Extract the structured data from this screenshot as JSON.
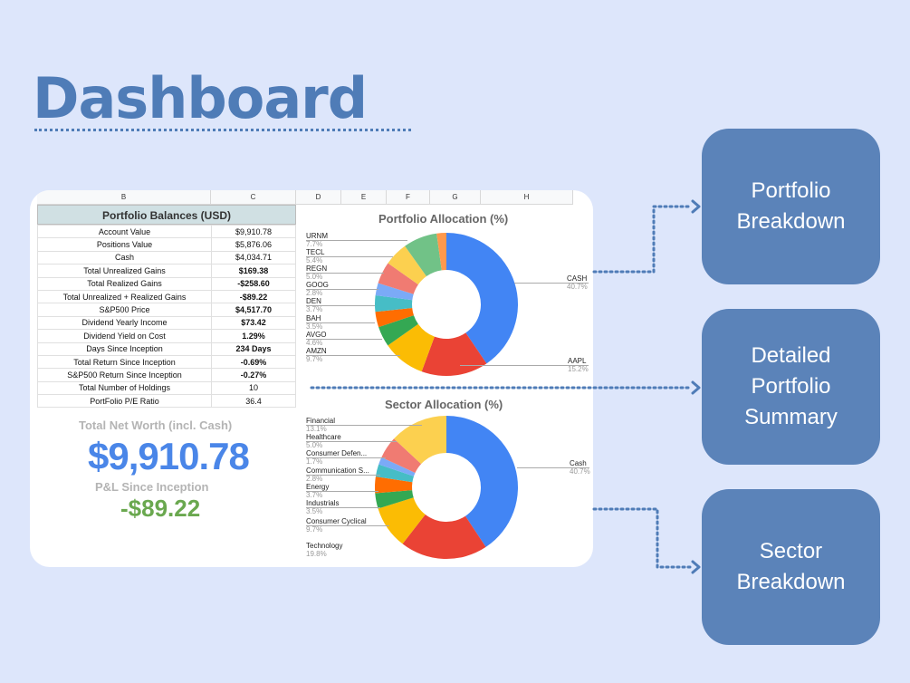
{
  "title": "Dashboard",
  "sheet": {
    "columns": [
      "B",
      "C",
      "D",
      "E",
      "F",
      "G",
      "H"
    ],
    "balances": {
      "title": "Portfolio Balances (USD)",
      "rows": [
        {
          "label": "Account Value",
          "value": "$9,910.78",
          "tone": ""
        },
        {
          "label": "Positions Value",
          "value": "$5,876.06",
          "tone": ""
        },
        {
          "label": "Cash",
          "value": "$4,034.71",
          "tone": ""
        },
        {
          "label": "Total Unrealized Gains",
          "value": "$169.38",
          "tone": "pos"
        },
        {
          "label": "Total Realized Gains",
          "value": "-$258.60",
          "tone": "neg"
        },
        {
          "label": "Total Unrealized + Realized Gains",
          "value": "-$89.22",
          "tone": "neg"
        },
        {
          "label": "S&P500 Price",
          "value": "$4,517.70",
          "tone": "pos"
        },
        {
          "label": "Dividend Yearly Income",
          "value": "$73.42",
          "tone": "pos"
        },
        {
          "label": "Dividend Yield on Cost",
          "value": "1.29%",
          "tone": "pos"
        },
        {
          "label": "Days Since Inception",
          "value": "234 Days",
          "tone": "pos"
        },
        {
          "label": "Total Return Since Inception",
          "value": "-0.69%",
          "tone": "neg"
        },
        {
          "label": "S&P500 Return Since Inception",
          "value": "-0.27%",
          "tone": "neg"
        },
        {
          "label": "Total Number of Holdings",
          "value": "10",
          "tone": ""
        },
        {
          "label": "PortFolio P/E Ratio",
          "value": "36.4",
          "tone": ""
        }
      ]
    },
    "net_worth_label": "Total Net Worth (incl. Cash)",
    "net_worth_value": "$9,910.78",
    "pl_label": "P&L Since Inception",
    "pl_value": "-$89.22"
  },
  "chart_data": [
    {
      "type": "pie",
      "title": "Portfolio Allocation (%)",
      "slices": [
        {
          "label": "CASH",
          "value": 40.7,
          "color": "#4285f4"
        },
        {
          "label": "AAPL",
          "value": 15.2,
          "color": "#ea4335"
        },
        {
          "label": "AMZN",
          "value": 9.7,
          "color": "#fbbc04"
        },
        {
          "label": "AVGO",
          "value": 4.6,
          "color": "#34a853"
        },
        {
          "label": "BAH",
          "value": 3.5,
          "color": "#ff6d01"
        },
        {
          "label": "DEN",
          "value": 3.7,
          "color": "#46bdc6"
        },
        {
          "label": "GOOG",
          "value": 2.8,
          "color": "#7baaf7"
        },
        {
          "label": "REGN",
          "value": 5.0,
          "color": "#f07b72"
        },
        {
          "label": "TECL",
          "value": 5.4,
          "color": "#fcd04f"
        },
        {
          "label": "URNM",
          "value": 7.7,
          "color": "#71c287"
        },
        {
          "label": "",
          "value": 2.2,
          "color": "#ff994d"
        }
      ]
    },
    {
      "type": "pie",
      "title": "Sector Allocation (%)",
      "slices": [
        {
          "label": "Cash",
          "value": 40.7,
          "color": "#4285f4"
        },
        {
          "label": "Technology",
          "value": 19.8,
          "color": "#ea4335"
        },
        {
          "label": "Consumer Cyclical",
          "value": 9.7,
          "color": "#fbbc04"
        },
        {
          "label": "Industrials",
          "value": 3.5,
          "color": "#34a853"
        },
        {
          "label": "Energy",
          "value": 3.7,
          "color": "#ff6d01"
        },
        {
          "label": "Communication S...",
          "value": 2.8,
          "color": "#46bdc6"
        },
        {
          "label": "Consumer Defen...",
          "value": 1.7,
          "color": "#7baaf7"
        },
        {
          "label": "Healthcare",
          "value": 5.0,
          "color": "#f07b72"
        },
        {
          "label": "Financial",
          "value": 13.1,
          "color": "#fcd04f"
        }
      ]
    }
  ],
  "pct_labels": {
    "cash": "40.7%",
    "aapl": "15.2%",
    "amzn": "9.7%",
    "avgo": "4.6%",
    "bah": "3.5%",
    "den": "3.7%",
    "goog": "2.8%",
    "regn": "5.0%",
    "tecl": "5.4%",
    "urnm": "7.7%",
    "s_cash": "40.7%",
    "s_tech": "19.8%",
    "s_cyc": "9.7%",
    "s_ind": "3.5%",
    "s_energy": "3.7%",
    "s_comm": "2.8%",
    "s_def": "1.7%",
    "s_health": "5.0%",
    "s_fin": "13.1%"
  },
  "boxes": {
    "portfolio_breakdown": [
      "Portfolio",
      "Breakdown"
    ],
    "detailed_summary": [
      "Detailed",
      "Portfolio",
      "Summary"
    ],
    "sector_breakdown": [
      "Sector",
      "Breakdown"
    ]
  },
  "colors": {
    "accent": "#4f7cb7",
    "box": "#5b83b9",
    "background": "#dde6fb"
  }
}
